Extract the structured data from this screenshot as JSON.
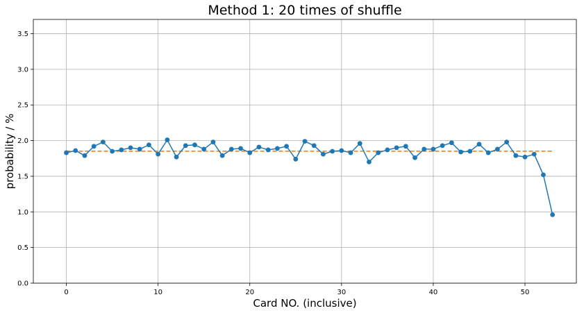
{
  "chart_data": {
    "type": "line",
    "title": "Method 1: 20 times of shuffle",
    "xlabel": "Card NO. (inclusive)",
    "ylabel": "probability / %",
    "xlim": [
      -3.6,
      55.6
    ],
    "ylim": [
      0.0,
      3.7
    ],
    "xticks": [
      0,
      10,
      20,
      30,
      40,
      50
    ],
    "yticks": [
      0.0,
      0.5,
      1.0,
      1.5,
      2.0,
      2.5,
      3.0,
      3.5
    ],
    "xtick_labels": [
      "0",
      "10",
      "20",
      "30",
      "40",
      "50"
    ],
    "ytick_labels": [
      "0.0",
      "0.5",
      "1.0",
      "1.5",
      "2.0",
      "2.5",
      "3.0",
      "3.5"
    ],
    "grid": true,
    "series": [
      {
        "style": "line-with-markers",
        "color": "#1f77b4",
        "x": [
          0,
          1,
          2,
          3,
          4,
          5,
          6,
          7,
          8,
          9,
          10,
          11,
          12,
          13,
          14,
          15,
          16,
          17,
          18,
          19,
          20,
          21,
          22,
          23,
          24,
          25,
          26,
          27,
          28,
          29,
          30,
          31,
          32,
          33,
          34,
          35,
          36,
          37,
          38,
          39,
          40,
          41,
          42,
          43,
          44,
          45,
          46,
          47,
          48,
          49,
          50,
          51,
          52,
          53
        ],
        "y": [
          1.83,
          1.86,
          1.79,
          1.92,
          1.98,
          1.85,
          1.87,
          1.9,
          1.88,
          1.94,
          1.81,
          2.01,
          1.77,
          1.93,
          1.94,
          1.88,
          1.98,
          1.79,
          1.88,
          1.89,
          1.83,
          1.91,
          1.87,
          1.89,
          1.92,
          1.74,
          1.99,
          1.93,
          1.81,
          1.85,
          1.86,
          1.83,
          1.96,
          1.7,
          1.83,
          1.87,
          1.9,
          1.92,
          1.76,
          1.88,
          1.88,
          1.93,
          1.97,
          1.84,
          1.85,
          1.95,
          1.83,
          1.88,
          1.98,
          1.79,
          1.77,
          1.81,
          1.52,
          0.96
        ]
      },
      {
        "style": "dashed-line",
        "color": "#ff7f0e",
        "x": [
          0,
          53
        ],
        "y": [
          1.852,
          1.852
        ]
      }
    ]
  }
}
